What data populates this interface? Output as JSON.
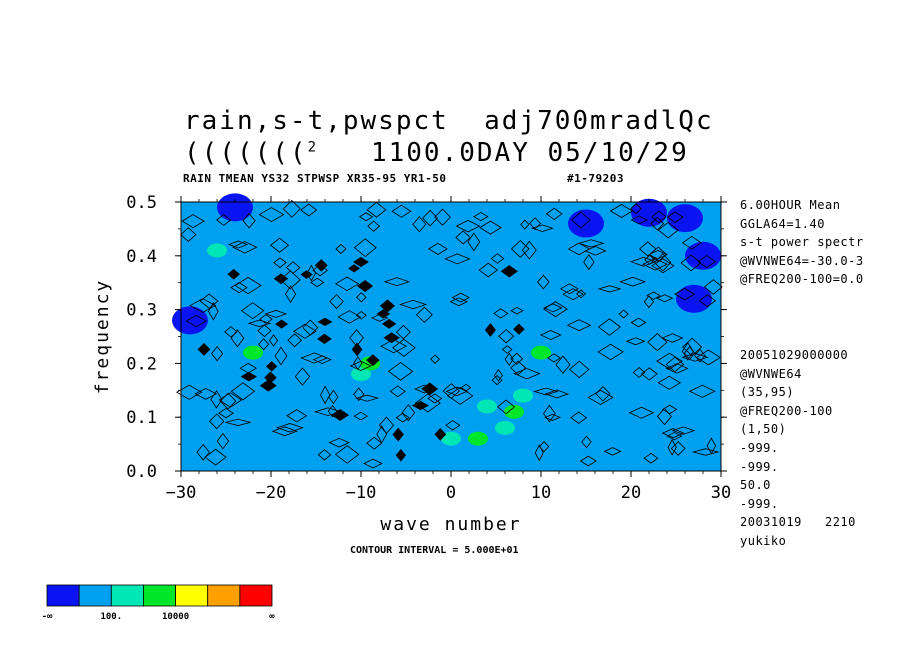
{
  "header": {
    "title_line1": "rain,s-t,pwspct  adj700mradlQc",
    "title_line2_prefix": "(((((((",
    "title_line2_sup": "2",
    "title_line2_suffix": "   1100.0DAY 05/10/29",
    "subtitle_left": "RAIN TMEAN YS32 STPWSP XR35-95 YR1-50",
    "subtitle_right": "#1-79203"
  },
  "side_info_top": [
    "6.00HOUR Mean",
    "GGLA64=1.40",
    "s-t power spectr",
    "@WVNWE64=-30.0-3",
    "@FREQ200-100=0.0"
  ],
  "side_info_bottom": [
    "20051029000000",
    "@WVNWE64",
    "(35,95)",
    "@FREQ200-100",
    "(1,50)",
    "-999.",
    "-999.",
    "50.0",
    "-999.",
    "20031019   2210",
    "yukiko"
  ],
  "contour_interval": "CONTOUR INTERVAL = 5.000E+01",
  "colorbar": {
    "colors": [
      "#0a14f0",
      "#00a0f0",
      "#00e6b4",
      "#00e628",
      "#ffff00",
      "#ffa000",
      "#ff0000"
    ],
    "labels": [
      "-∞",
      "100.",
      "10000",
      "∞"
    ]
  },
  "chart_data": {
    "type": "heatmap",
    "xlabel": "wave number",
    "ylabel": "frequency",
    "xlim": [
      -30,
      30
    ],
    "ylim": [
      0.0,
      0.5
    ],
    "x_ticks": [
      "-30",
      "-20",
      "-10",
      "0",
      "10",
      "20",
      "30"
    ],
    "y_ticks": [
      "0.0",
      "0.1",
      "0.2",
      "0.3",
      "0.4",
      "0.5"
    ],
    "background_level_color": "#00a0f0",
    "patches": [
      {
        "x": 26,
        "y": 0.47,
        "level": "low",
        "color": "#0a14f0"
      },
      {
        "x": 28,
        "y": 0.4,
        "level": "low",
        "color": "#0a14f0"
      },
      {
        "x": 22,
        "y": 0.48,
        "level": "low",
        "color": "#0a14f0"
      },
      {
        "x": 27,
        "y": 0.32,
        "level": "low",
        "color": "#0a14f0"
      },
      {
        "x": 15,
        "y": 0.46,
        "level": "low",
        "color": "#0a14f0"
      },
      {
        "x": -29,
        "y": 0.28,
        "level": "low",
        "color": "#0a14f0"
      },
      {
        "x": -24,
        "y": 0.49,
        "level": "low",
        "color": "#0a14f0"
      },
      {
        "x": 4,
        "y": 0.12,
        "level": "mid",
        "color": "#00e6b4"
      },
      {
        "x": 6,
        "y": 0.08,
        "level": "mid",
        "color": "#00e6b4"
      },
      {
        "x": -10,
        "y": 0.18,
        "level": "mid",
        "color": "#00e6b4"
      },
      {
        "x": 0,
        "y": 0.06,
        "level": "mid",
        "color": "#00e6b4"
      },
      {
        "x": 8,
        "y": 0.14,
        "level": "mid",
        "color": "#00e6b4"
      },
      {
        "x": -26,
        "y": 0.41,
        "level": "mid",
        "color": "#00e6b4"
      },
      {
        "x": 7,
        "y": 0.11,
        "level": "high",
        "color": "#00e628"
      },
      {
        "x": 3,
        "y": 0.06,
        "level": "high",
        "color": "#00e628"
      },
      {
        "x": -9,
        "y": 0.2,
        "level": "high",
        "color": "#00e628"
      },
      {
        "x": 10,
        "y": 0.22,
        "level": "high",
        "color": "#00e628"
      },
      {
        "x": -22,
        "y": 0.22,
        "level": "high",
        "color": "#00e628"
      }
    ]
  }
}
